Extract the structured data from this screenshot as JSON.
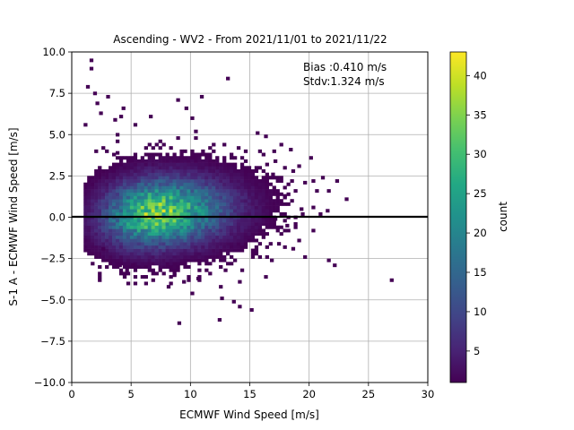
{
  "chart_data": {
    "type": "heatmap",
    "title": "Ascending - WV2 - From 2021/11/01 to 2021/11/22",
    "xlabel": "ECMWF Wind Speed [m/s]",
    "ylabel": "S-1 A - ECMWF Wind Speed [m/s]",
    "xlim": [
      0,
      30
    ],
    "ylim": [
      -10,
      10
    ],
    "xticks": [
      0,
      5,
      10,
      15,
      20,
      25,
      30
    ],
    "xtick_labels": [
      "0",
      "5",
      "10",
      "15",
      "20",
      "25",
      "30"
    ],
    "yticks": [
      -10,
      -7.5,
      -5,
      -2.5,
      0,
      2.5,
      5,
      7.5,
      10
    ],
    "ytick_labels": [
      "−10.0",
      "−7.5",
      "−5.0",
      "−2.5",
      "0.0",
      "2.5",
      "5.0",
      "7.5",
      "10.0"
    ],
    "grid": true,
    "reference_line_y": 0,
    "annotation_lines": [
      "Bias :0.410 m/s",
      "Stdv:1.324 m/s"
    ],
    "colorbar": {
      "label": "count",
      "colormap": "viridis",
      "range": [
        1,
        43
      ],
      "ticks": [
        5,
        10,
        15,
        20,
        25,
        30,
        35,
        40
      ],
      "tick_labels": [
        "5",
        "10",
        "15",
        "20",
        "25",
        "30",
        "35",
        "40"
      ]
    },
    "density": {
      "center_x": 7.0,
      "center_y": 0.3,
      "sigma_x": 3.4,
      "sigma_y": 1.3,
      "peak_count": 43,
      "xmin": 1.0,
      "xmax": 22.5,
      "ymin": -4.7,
      "ymax": 7.5,
      "bin_width": 0.3,
      "bin_height": 0.2
    },
    "outliers": [
      [
        1.5,
        9.4
      ],
      [
        1.5,
        8.9
      ],
      [
        1.2,
        7.8
      ],
      [
        1.8,
        7.4
      ],
      [
        2.0,
        6.8
      ],
      [
        2.3,
        6.2
      ],
      [
        4.0,
        6.0
      ],
      [
        1.0,
        5.5
      ],
      [
        2.9,
        7.2
      ],
      [
        4.2,
        6.5
      ],
      [
        3.5,
        5.8
      ],
      [
        6.5,
        6.0
      ],
      [
        10.8,
        7.2
      ],
      [
        13.0,
        8.3
      ],
      [
        8.8,
        7.0
      ],
      [
        3.7,
        3.8
      ],
      [
        5.2,
        5.5
      ],
      [
        9.5,
        6.5
      ],
      [
        15.5,
        5.0
      ],
      [
        16.2,
        4.8
      ],
      [
        16.0,
        3.7
      ],
      [
        17.5,
        4.3
      ],
      [
        18.3,
        4.0
      ],
      [
        20.0,
        3.5
      ],
      [
        19.0,
        3.0
      ],
      [
        17.0,
        3.3
      ],
      [
        21.0,
        2.3
      ],
      [
        21.5,
        1.5
      ],
      [
        22.2,
        2.1
      ],
      [
        23.0,
        1.0
      ],
      [
        20.5,
        1.5
      ],
      [
        19.5,
        2.0
      ],
      [
        18.5,
        2.7
      ],
      [
        16.8,
        2.5
      ],
      [
        17.8,
        1.2
      ],
      [
        19.2,
        0.4
      ],
      [
        18.0,
        -0.6
      ],
      [
        17.3,
        -1.7
      ],
      [
        16.7,
        -2.7
      ],
      [
        16.2,
        -3.7
      ],
      [
        19.5,
        -2.5
      ],
      [
        21.5,
        -2.7
      ],
      [
        22.0,
        -3.0
      ],
      [
        14.0,
        -4.0
      ],
      [
        12.8,
        -3.3
      ],
      [
        10.0,
        -4.7
      ],
      [
        9.3,
        -4.0
      ],
      [
        8.0,
        -4.3
      ],
      [
        8.5,
        -3.6
      ],
      [
        7.3,
        -3.3
      ],
      [
        10.5,
        -3.8
      ],
      [
        11.5,
        -3.5
      ],
      [
        14.0,
        -5.5
      ],
      [
        15.0,
        -5.7
      ],
      [
        12.5,
        -5.0
      ],
      [
        12.3,
        -6.3
      ],
      [
        8.9,
        -6.5
      ],
      [
        13.5,
        -5.2
      ],
      [
        26.8,
        -3.9
      ],
      [
        5.0,
        -3.0
      ],
      [
        6.0,
        -3.7
      ],
      [
        3.9,
        -3.0
      ],
      [
        2.5,
        -2.0
      ],
      [
        4.5,
        -3.3
      ],
      [
        17.0,
        -0.2
      ],
      [
        18.5,
        -2.0
      ]
    ]
  }
}
